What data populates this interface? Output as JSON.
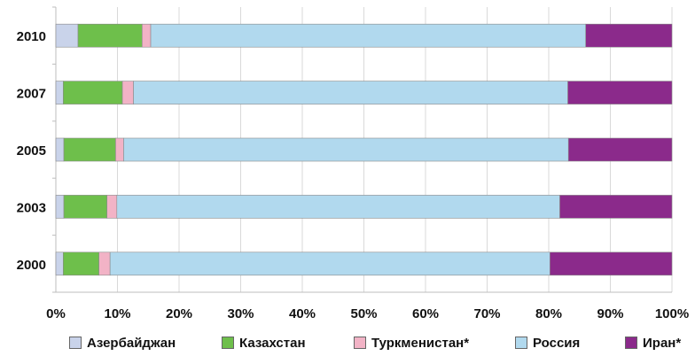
{
  "chart_data": {
    "type": "bar",
    "orientation": "horizontal",
    "stacked": true,
    "percent_stacked": true,
    "categories": [
      "2010",
      "2007",
      "2005",
      "2003",
      "2000"
    ],
    "series": [
      {
        "name": "Азербайджан",
        "color": "#c9d3ea",
        "values": [
          3.6,
          1.2,
          1.3,
          1.3,
          1.2
        ]
      },
      {
        "name": "Казахстан",
        "color": "#6ebf4b",
        "values": [
          10.4,
          9.6,
          8.4,
          7.0,
          5.8
        ]
      },
      {
        "name": "Туркменистан*",
        "color": "#f2b3c6",
        "values": [
          1.4,
          1.8,
          1.3,
          1.6,
          1.8
        ]
      },
      {
        "name": "Россия",
        "color": "#b1d9ee",
        "values": [
          70.6,
          70.5,
          72.2,
          71.9,
          71.4
        ]
      },
      {
        "name": "Иран*",
        "color": "#8b2a8b",
        "values": [
          14.0,
          16.9,
          16.8,
          18.2,
          19.8
        ]
      }
    ],
    "xlim": [
      0,
      100
    ],
    "x_ticks": [
      "0%",
      "10%",
      "20%",
      "30%",
      "40%",
      "50%",
      "60%",
      "70%",
      "80%",
      "90%",
      "100%"
    ],
    "grid": true,
    "legend_position": "bottom",
    "title": "",
    "xlabel": "",
    "ylabel": ""
  }
}
